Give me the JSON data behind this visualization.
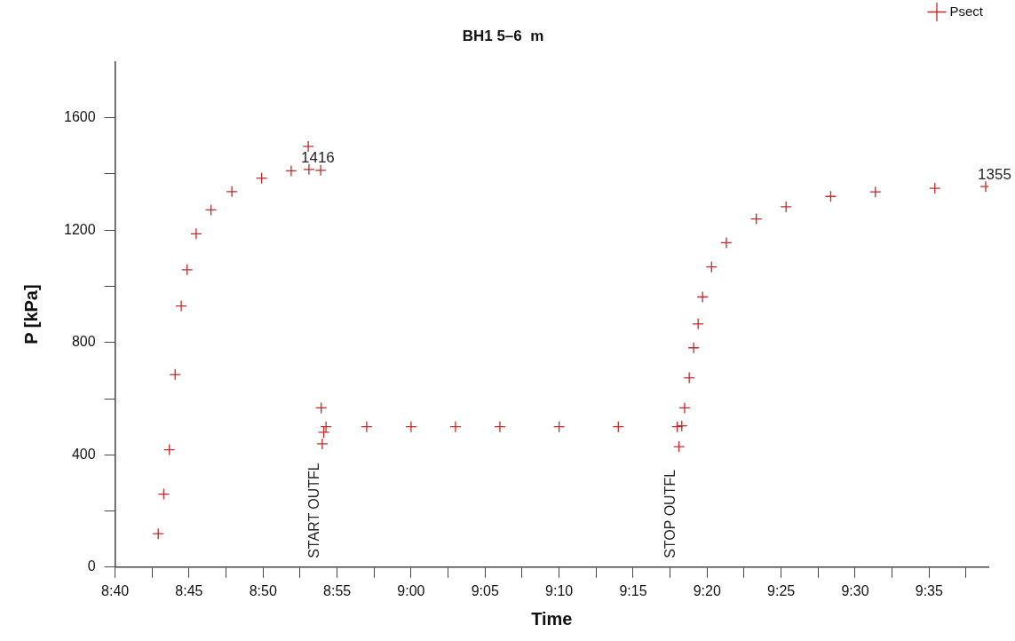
{
  "chart_data": {
    "type": "scatter",
    "title": "BH1 5–6  m",
    "xlabel": "Time",
    "ylabel": "P [kPa]",
    "marker": "cross",
    "legend": "top right",
    "grid": false,
    "xlim": [
      8.6667,
      9.65
    ],
    "ylim": [
      0,
      1800
    ],
    "xticks": [
      {
        "value": 8.6667,
        "label": "8:40"
      },
      {
        "value": 8.7083,
        "label": null
      },
      {
        "value": 8.75,
        "label": "8:45"
      },
      {
        "value": 8.7917,
        "label": null
      },
      {
        "value": 8.8333,
        "label": "8:50"
      },
      {
        "value": 8.875,
        "label": null
      },
      {
        "value": 8.9167,
        "label": "8:55"
      },
      {
        "value": 8.9583,
        "label": null
      },
      {
        "value": 9.0,
        "label": "9:00"
      },
      {
        "value": 9.0417,
        "label": null
      },
      {
        "value": 9.0833,
        "label": "9:05"
      },
      {
        "value": 9.125,
        "label": null
      },
      {
        "value": 9.1667,
        "label": "9:10"
      },
      {
        "value": 9.2083,
        "label": null
      },
      {
        "value": 9.25,
        "label": "9:15"
      },
      {
        "value": 9.2917,
        "label": null
      },
      {
        "value": 9.3333,
        "label": "9:20"
      },
      {
        "value": 9.375,
        "label": null
      },
      {
        "value": 9.4167,
        "label": "9:25"
      },
      {
        "value": 9.4583,
        "label": null
      },
      {
        "value": 9.5,
        "label": "9:30"
      },
      {
        "value": 9.5417,
        "label": null
      },
      {
        "value": 9.5833,
        "label": "9:35"
      },
      {
        "value": 9.625,
        "label": null
      }
    ],
    "yticks": [
      0,
      {
        "value": 200,
        "label": null
      },
      400,
      {
        "value": 600,
        "label": null
      },
      800,
      {
        "value": 1000,
        "label": null
      },
      1200,
      {
        "value": 1400,
        "label": null
      },
      1600
    ],
    "annotations": [
      "START OUTFL",
      "STOP OUTFL"
    ],
    "series": [
      {
        "name": "Psect",
        "color": "#c62828",
        "x": [
          8.7153,
          8.7215,
          8.7278,
          8.7343,
          8.7412,
          8.7478,
          8.758,
          8.7747,
          8.7982,
          8.8317,
          8.865,
          8.8842,
          8.885,
          8.8982,
          8.8988,
          8.9,
          8.9017,
          8.9042,
          8.95,
          9.0,
          9.05,
          9.1,
          9.1667,
          9.2333,
          9.2997,
          9.3017,
          9.3048,
          9.308,
          9.3132,
          9.3182,
          9.3232,
          9.3282,
          9.3383,
          9.355,
          9.3887,
          9.4222,
          9.4725,
          9.5228,
          9.5898,
          9.647
        ],
        "values": [
          119,
          260,
          418,
          686,
          930,
          1059,
          1187,
          1272,
          1337,
          1385,
          1411,
          1498,
          1416,
          1413,
          567,
          439,
          480,
          500,
          500,
          500,
          500,
          500,
          500,
          500,
          500,
          429,
          503,
          567,
          674,
          781,
          866,
          962,
          1069,
          1155,
          1240,
          1283,
          1320,
          1336,
          1349,
          1355
        ],
        "value_labels": [
          null,
          null,
          null,
          null,
          null,
          null,
          null,
          null,
          null,
          null,
          null,
          null,
          "1416",
          null,
          null,
          null,
          null,
          null,
          null,
          null,
          null,
          null,
          null,
          null,
          null,
          null,
          null,
          null,
          null,
          null,
          null,
          null,
          null,
          null,
          null,
          null,
          null,
          null,
          null,
          "1355"
        ]
      }
    ]
  }
}
